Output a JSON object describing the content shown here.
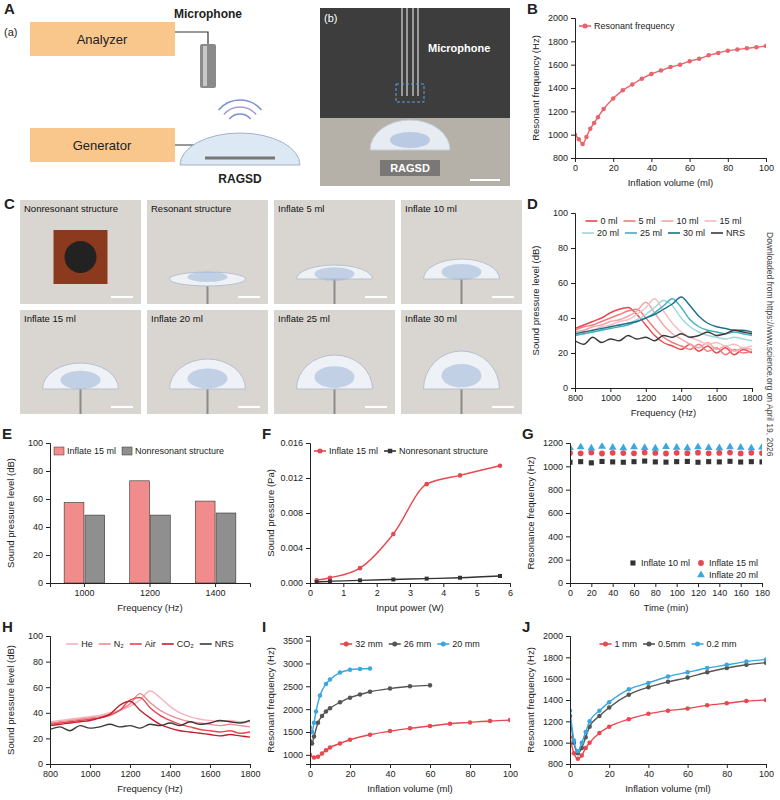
{
  "side_note": "Downloaded from https://www.science.org on April 19, 2026",
  "diagram_a": {
    "panel": "A",
    "schematic": {
      "label": "(a)",
      "boxes": [
        "Analyzer",
        "Generator"
      ],
      "microphone": "Microphone",
      "device": "RAGSD"
    },
    "photo": {
      "label": "(b)",
      "microphone": "Microphone",
      "device": "RAGSD"
    }
  },
  "photos_c": {
    "panel": "C",
    "tiles": [
      "Nonresonant structure",
      "Resonant structure",
      "Inflate 5 ml",
      "Inflate 10 ml",
      "Inflate 15 ml",
      "Inflate 20 ml",
      "Inflate 25 ml",
      "Inflate 30 ml"
    ]
  },
  "chart_data": [
    {
      "panel": "B",
      "type": "line",
      "xlabel": "Inflation volume (ml)",
      "ylabel": "Resonant frequency (Hz)",
      "xlim": [
        0,
        100
      ],
      "ylim": [
        800,
        2000
      ],
      "xticks": [
        0,
        20,
        40,
        60,
        80,
        100
      ],
      "yticks": [
        800,
        1000,
        1200,
        1400,
        1600,
        1800,
        2000
      ],
      "legend": "top-left",
      "x": [
        0,
        2,
        4,
        6,
        8,
        10,
        12,
        15,
        20,
        25,
        30,
        35,
        40,
        45,
        50,
        55,
        60,
        65,
        70,
        75,
        80,
        85,
        90,
        95,
        100
      ],
      "series": [
        {
          "name": "Resonant frequency",
          "color": "#e8636b",
          "marker": "circle",
          "values": [
            1000,
            960,
            920,
            980,
            1050,
            1100,
            1150,
            1220,
            1310,
            1380,
            1430,
            1480,
            1520,
            1550,
            1580,
            1600,
            1630,
            1650,
            1680,
            1700,
            1720,
            1730,
            1740,
            1750,
            1760
          ]
        }
      ]
    },
    {
      "panel": "D",
      "type": "line",
      "xlabel": "Frequency (Hz)",
      "ylabel": "Sound pressure level (dB)",
      "xlim": [
        800,
        1800
      ],
      "ylim": [
        0,
        100
      ],
      "xticks": [
        800,
        1000,
        1200,
        1400,
        1600,
        1800
      ],
      "yticks": [
        0,
        20,
        40,
        60,
        80,
        100
      ],
      "legend": "top",
      "x": [
        800,
        850,
        900,
        950,
        1000,
        1050,
        1100,
        1150,
        1200,
        1250,
        1300,
        1350,
        1400,
        1450,
        1500,
        1550,
        1600,
        1650,
        1700,
        1750,
        1800
      ],
      "series": [
        {
          "name": "0 ml",
          "color": "#e8474f",
          "values": [
            34,
            36,
            38,
            40,
            43,
            45,
            46,
            42,
            36,
            30,
            26,
            24,
            22,
            25,
            21,
            24,
            20,
            23,
            19,
            22,
            20
          ]
        },
        {
          "name": "5 ml",
          "color": "#f07a7a",
          "values": [
            33,
            35,
            36,
            38,
            40,
            42,
            44,
            45,
            40,
            34,
            29,
            26,
            24,
            22,
            25,
            21,
            23,
            19,
            22,
            20,
            21
          ]
        },
        {
          "name": "10 ml",
          "color": "#f4a3a8",
          "values": [
            32,
            33,
            35,
            36,
            38,
            39,
            41,
            44,
            49,
            43,
            36,
            31,
            28,
            25,
            23,
            26,
            22,
            24,
            21,
            23,
            22
          ]
        },
        {
          "name": "15 ml",
          "color": "#f5bcc1",
          "values": [
            31,
            32,
            33,
            35,
            36,
            38,
            39,
            42,
            46,
            51,
            44,
            37,
            32,
            29,
            27,
            25,
            26,
            24,
            25,
            23,
            24
          ]
        },
        {
          "name": "20 ml",
          "color": "#9fd6dc",
          "values": [
            30,
            31,
            32,
            33,
            35,
            36,
            37,
            39,
            42,
            46,
            50,
            47,
            40,
            35,
            32,
            30,
            29,
            28,
            29,
            28,
            27
          ]
        },
        {
          "name": "25 ml",
          "color": "#3fb0bf",
          "values": [
            30,
            31,
            32,
            33,
            34,
            35,
            36,
            38,
            40,
            43,
            47,
            51,
            46,
            39,
            35,
            33,
            32,
            31,
            32,
            31,
            30
          ]
        },
        {
          "name": "30 ml",
          "color": "#1f6f86",
          "values": [
            31,
            32,
            33,
            34,
            35,
            36,
            37,
            38,
            40,
            42,
            45,
            48,
            52,
            47,
            41,
            37,
            35,
            34,
            33,
            33,
            32
          ]
        },
        {
          "name": "NRS",
          "color": "#3a3a3a",
          "values": [
            27,
            25,
            29,
            26,
            28,
            27,
            30,
            28,
            29,
            27,
            30,
            29,
            31,
            29,
            30,
            32,
            30,
            31,
            33,
            32,
            31
          ]
        }
      ]
    },
    {
      "panel": "E",
      "type": "bar",
      "xlabel": "Frequency (Hz)",
      "ylabel": "Sound pressure level (dB)",
      "categories": [
        "1000",
        "1200",
        "1400"
      ],
      "ylim": [
        0,
        100
      ],
      "yticks": [
        0,
        20,
        40,
        60,
        80,
        100
      ],
      "legend": "top-left",
      "series": [
        {
          "name": "Inflate 15 ml",
          "color": "#f28b8b",
          "values": [
            57.5,
            73,
            58.5
          ]
        },
        {
          "name": "Nonresonant structure",
          "color": "#8f8f8f",
          "values": [
            48.5,
            48.5,
            50
          ]
        }
      ]
    },
    {
      "panel": "F",
      "type": "line",
      "xlabel": "Input power (W)",
      "ylabel": "Sound pressure (Pa)",
      "xlim": [
        0,
        6
      ],
      "ylim": [
        0,
        0.016
      ],
      "xticks": [
        0,
        1,
        2,
        3,
        4,
        5,
        6
      ],
      "yticks": [
        {
          "value": 0,
          "label": "0.000"
        },
        {
          "value": 0.004,
          "label": "0.004"
        },
        {
          "value": 0.008,
          "label": "0.008"
        },
        {
          "value": 0.012,
          "label": "0.012"
        },
        {
          "value": 0.016,
          "label": "0.016"
        }
      ],
      "legend": "top-left",
      "series": [
        {
          "name": "Inflate 15 ml",
          "color": "#e8474f",
          "marker": "circle",
          "x": [
            0.2,
            0.6,
            1.5,
            2.5,
            3.5,
            4.5,
            5.7
          ],
          "values": [
            0.0003,
            0.0006,
            0.0017,
            0.0056,
            0.0113,
            0.0123,
            0.0134
          ]
        },
        {
          "name": "Nonresonant structure",
          "color": "#333333",
          "marker": "square",
          "x": [
            0.2,
            0.6,
            1.5,
            2.5,
            3.5,
            4.5,
            5.7
          ],
          "values": [
            0.0001,
            0.0002,
            0.0003,
            0.0004,
            0.0005,
            0.0006,
            0.0008
          ]
        }
      ]
    },
    {
      "panel": "G",
      "type": "scatter",
      "xlabel": "Time (min)",
      "ylabel": "Resonance frequency (Hz)",
      "xlim": [
        0,
        180
      ],
      "ylim": [
        0,
        1200
      ],
      "xticks": [
        0,
        20,
        40,
        60,
        80,
        100,
        120,
        140,
        160,
        180
      ],
      "yticks": [
        0,
        200,
        400,
        600,
        800,
        1000,
        1200
      ],
      "legend": "bottom-right",
      "x": [
        0,
        10,
        20,
        30,
        40,
        50,
        60,
        70,
        80,
        90,
        100,
        110,
        120,
        130,
        140,
        150,
        160,
        170,
        180
      ],
      "series": [
        {
          "name": "Inflate 10 ml",
          "color": "#333333",
          "marker": "square",
          "values": [
            1035,
            1040,
            1030,
            1042,
            1038,
            1035,
            1040,
            1045,
            1038,
            1036,
            1040,
            1042,
            1035,
            1040,
            1038,
            1043,
            1037,
            1040,
            1038
          ]
        },
        {
          "name": "Inflate 15 ml",
          "color": "#e8474f",
          "marker": "circle",
          "values": [
            1115,
            1112,
            1118,
            1110,
            1116,
            1114,
            1112,
            1118,
            1115,
            1110,
            1116,
            1113,
            1117,
            1112,
            1115,
            1118,
            1111,
            1116,
            1114
          ]
        },
        {
          "name": "Inflate 20 ml",
          "color": "#3ba7e0",
          "marker": "triangle",
          "values": [
            1160,
            1165,
            1155,
            1170,
            1162,
            1158,
            1166,
            1160,
            1155,
            1168,
            1162,
            1157,
            1165,
            1160,
            1158,
            1166,
            1161,
            1156,
            1163
          ]
        }
      ]
    },
    {
      "panel": "H",
      "type": "line",
      "xlabel": "Frequency (Hz)",
      "ylabel": "Sound pressure level (dB)",
      "xlim": [
        800,
        1800
      ],
      "ylim": [
        0,
        100
      ],
      "xticks": [
        800,
        1000,
        1200,
        1400,
        1600,
        1800
      ],
      "yticks": [
        0,
        20,
        40,
        60,
        80,
        100
      ],
      "legend": "top",
      "x": [
        800,
        850,
        900,
        950,
        1000,
        1050,
        1100,
        1150,
        1200,
        1250,
        1300,
        1350,
        1400,
        1450,
        1500,
        1550,
        1600,
        1650,
        1700,
        1750,
        1800
      ],
      "series": [
        {
          "name": "He",
          "color": "#f6b3bb",
          "values": [
            33,
            34,
            35,
            36,
            37,
            38,
            40,
            42,
            45,
            50,
            57,
            52,
            45,
            40,
            37,
            35,
            34,
            33,
            34,
            33,
            33
          ]
        },
        {
          "name": "N₂",
          "color": "#f08a95",
          "values": [
            32,
            33,
            34,
            35,
            36,
            37,
            39,
            42,
            47,
            55,
            48,
            42,
            38,
            35,
            33,
            32,
            31,
            30,
            31,
            30,
            29
          ]
        },
        {
          "name": "Air",
          "color": "#e8474f",
          "values": [
            31,
            32,
            33,
            34,
            35,
            36,
            38,
            42,
            50,
            52,
            44,
            38,
            34,
            31,
            29,
            27,
            26,
            25,
            26,
            24,
            25
          ]
        },
        {
          "name": "CO₂",
          "color": "#c0202f",
          "values": [
            30,
            31,
            32,
            33,
            34,
            36,
            39,
            46,
            49,
            42,
            36,
            31,
            28,
            26,
            25,
            24,
            23,
            22,
            23,
            22,
            21
          ]
        },
        {
          "name": "NRS",
          "color": "#3a3a3a",
          "values": [
            27,
            29,
            26,
            30,
            28,
            29,
            31,
            29,
            30,
            28,
            31,
            30,
            32,
            30,
            33,
            31,
            32,
            34,
            33,
            32,
            34
          ]
        }
      ]
    },
    {
      "panel": "I",
      "type": "line",
      "xlabel": "Inflation volume (ml)",
      "ylabel": "Resonant frequency (Hz)",
      "xlim": [
        0,
        100
      ],
      "ylim": [
        800,
        3600
      ],
      "xticks": [
        0,
        20,
        40,
        60,
        80,
        100
      ],
      "yticks": [
        1000,
        1500,
        2000,
        2500,
        3000,
        3500
      ],
      "legend": "top",
      "series": [
        {
          "name": "32 mm",
          "color": "#e8474f",
          "marker": "circle",
          "x": [
            0,
            2,
            4,
            6,
            8,
            10,
            15,
            20,
            30,
            40,
            50,
            60,
            70,
            80,
            90,
            100
          ],
          "values": [
            1000,
            940,
            960,
            1030,
            1100,
            1160,
            1250,
            1330,
            1440,
            1520,
            1580,
            1630,
            1680,
            1710,
            1740,
            1760
          ]
        },
        {
          "name": "26 mm",
          "color": "#555555",
          "marker": "circle",
          "x": [
            0,
            1,
            2,
            4,
            6,
            8,
            10,
            15,
            20,
            25,
            30,
            40,
            50,
            60
          ],
          "values": [
            1300,
            1250,
            1400,
            1700,
            1850,
            1950,
            2020,
            2150,
            2250,
            2320,
            2380,
            2450,
            2500,
            2520
          ]
        },
        {
          "name": "20 mm",
          "color": "#3ba7e0",
          "marker": "circle",
          "x": [
            0,
            1,
            2,
            3,
            5,
            8,
            10,
            15,
            20,
            25,
            30
          ],
          "values": [
            1600,
            1500,
            1700,
            1950,
            2300,
            2550,
            2650,
            2800,
            2860,
            2880,
            2890
          ]
        }
      ]
    },
    {
      "panel": "J",
      "type": "line",
      "xlabel": "Inflation volume (ml)",
      "ylabel": "Resonant frequency (Hz)",
      "xlim": [
        0,
        100
      ],
      "ylim": [
        800,
        2000
      ],
      "xticks": [
        0,
        20,
        40,
        60,
        80,
        100
      ],
      "yticks": [
        800,
        1000,
        1200,
        1400,
        1600,
        1800,
        2000
      ],
      "legend": "top",
      "x": [
        0,
        2,
        4,
        6,
        8,
        10,
        15,
        20,
        30,
        40,
        50,
        60,
        70,
        80,
        90,
        100
      ],
      "series": [
        {
          "name": "1 mm",
          "color": "#e8474f",
          "marker": "circle",
          "values": [
            1050,
            900,
            850,
            880,
            950,
            1000,
            1090,
            1150,
            1220,
            1270,
            1300,
            1320,
            1350,
            1370,
            1390,
            1400
          ]
        },
        {
          "name": "0.5mm",
          "color": "#555555",
          "marker": "circle",
          "values": [
            1250,
            1000,
            900,
            950,
            1050,
            1150,
            1250,
            1330,
            1450,
            1520,
            1570,
            1610,
            1660,
            1700,
            1730,
            1750
          ]
        },
        {
          "name": "0.2 mm",
          "color": "#3ba7e0",
          "marker": "circle",
          "values": [
            1300,
            1020,
            920,
            1000,
            1100,
            1200,
            1300,
            1380,
            1500,
            1560,
            1620,
            1660,
            1700,
            1730,
            1760,
            1780
          ]
        }
      ]
    }
  ]
}
